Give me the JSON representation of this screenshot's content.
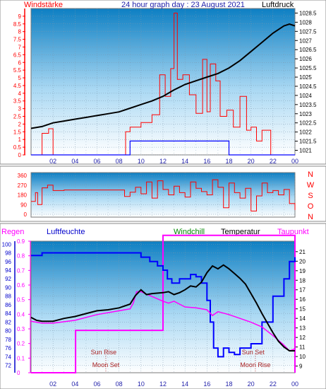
{
  "chart_data": [
    {
      "type": "line",
      "title": "24 hour graph day : 23 August 2021",
      "left_axis_label": "Windstärke",
      "right_axis_label": "Luftdruck",
      "x_tick_labels": [
        "02",
        "04",
        "06",
        "08",
        "10",
        "12",
        "14",
        "16",
        "18",
        "20",
        "22",
        "00"
      ],
      "x_ticks_hours": [
        2,
        4,
        6,
        8,
        10,
        12,
        14,
        16,
        18,
        20,
        22,
        24
      ],
      "left_ylim": [
        0,
        9.5
      ],
      "left_tick_labels": [
        "0",
        "0.5",
        "1",
        "1.5",
        "2",
        "2.5",
        "3",
        "3.5",
        "4",
        "4.5",
        "5",
        "5.5",
        "6",
        "6.5",
        "7",
        "7.5",
        "8",
        "8.5",
        "9"
      ],
      "right_ylim": [
        1020.75,
        1028.75
      ],
      "right_tick_labels": [
        "1021",
        "1021.5",
        "1022",
        "1022.5",
        "1023",
        "1023.5",
        "1024",
        "1024.5",
        "1025",
        "1025.5",
        "1026",
        "1026.5",
        "1027",
        "1027.5",
        "1028",
        "1028.5"
      ],
      "grid": true,
      "series": [
        {
          "name": "Luftdruck",
          "color": "#000000",
          "axis": "right",
          "x": [
            0,
            1,
            2,
            3,
            4,
            5,
            6,
            7,
            8,
            9,
            10,
            11,
            12,
            13,
            14,
            15,
            16,
            17,
            18,
            19,
            20,
            21,
            22,
            23,
            23.5,
            24
          ],
          "y": [
            1022.2,
            1022.3,
            1022.5,
            1022.6,
            1022.7,
            1022.8,
            1022.9,
            1023.0,
            1023.1,
            1023.3,
            1023.5,
            1023.7,
            1023.95,
            1024.3,
            1024.6,
            1024.8,
            1025.0,
            1025.2,
            1025.5,
            1025.9,
            1026.4,
            1026.9,
            1027.4,
            1027.8,
            1027.9,
            1027.8
          ]
        },
        {
          "name": "Windstärke (mean)",
          "color": "#0000ff",
          "axis": "left",
          "x": [
            0,
            9.0,
            9.0,
            18.0,
            18.0,
            24
          ],
          "y": [
            0,
            0,
            0.9,
            0.9,
            0,
            0
          ]
        },
        {
          "name": "Windstärke (gust)",
          "color": "#ff0000",
          "axis": "left",
          "x": [
            0,
            1.0,
            1.6,
            2.0,
            4.5,
            5.2,
            8.0,
            8.6,
            9.0,
            10.0,
            11.0,
            11.7,
            12.2,
            12.7,
            13.0,
            13.3,
            13.8,
            14.4,
            15.0,
            15.6,
            16.0,
            16.3,
            16.8,
            17.2,
            17.8,
            18.4,
            19.0,
            19.6,
            20.0,
            20.5,
            21.0,
            21.8,
            22.5,
            23.5,
            24
          ],
          "y": [
            0,
            1.4,
            1.7,
            0,
            0,
            0,
            0,
            1.5,
            1.8,
            2.1,
            2.6,
            5.2,
            3.8,
            5.6,
            9.2,
            4.9,
            5.2,
            3.9,
            2.7,
            6.2,
            2.8,
            5.9,
            4.8,
            2.5,
            2.9,
            1.8,
            3.8,
            1.6,
            1.8,
            0.9,
            1.6,
            0,
            0,
            0,
            0
          ]
        }
      ]
    },
    {
      "type": "scatter",
      "title": "",
      "y_tick_labels": [
        "0",
        "90",
        "180",
        "270",
        "360"
      ],
      "right_labels": [
        "N",
        "W",
        "S",
        "O",
        "N"
      ],
      "ylim": [
        0,
        360
      ],
      "grid": true,
      "series": [
        {
          "name": "Windrichtung",
          "color": "#ff0000",
          "x": [
            0,
            0.4,
            0.6,
            1.0,
            1.5,
            2.0,
            3.0,
            4.0,
            6.0,
            8.0,
            8.5,
            9.0,
            9.5,
            10.0,
            10.5,
            11.0,
            11.5,
            12.0,
            12.5,
            13.0,
            13.5,
            14.0,
            14.5,
            15.0,
            15.5,
            16.0,
            16.5,
            17.0,
            17.5,
            18.0,
            18.5,
            19.0,
            19.5,
            20.0,
            20.5,
            21.0,
            21.5,
            22.0,
            22.5,
            23.0,
            23.5,
            24.0
          ],
          "y": [
            120,
            200,
            90,
            245,
            270,
            220,
            225,
            225,
            225,
            225,
            165,
            205,
            250,
            190,
            300,
            150,
            310,
            230,
            180,
            260,
            200,
            160,
            300,
            240,
            210,
            180,
            320,
            250,
            60,
            290,
            200,
            150,
            240,
            30,
            170,
            290,
            200,
            220,
            180,
            230,
            100,
            40
          ]
        }
      ]
    },
    {
      "type": "line",
      "title": "",
      "header_labels": [
        "Regen",
        "Luftfeuchte",
        "Windchill",
        "Temperatur",
        "Taupunkt"
      ],
      "x_tick_labels": [
        "02",
        "04",
        "06",
        "08",
        "10",
        "12",
        "14",
        "16",
        "18",
        "20",
        "22",
        "00"
      ],
      "left_humidity_ticks": [
        "72",
        "74",
        "76",
        "78",
        "80",
        "82",
        "84",
        "86",
        "88",
        "90",
        "92",
        "94",
        "96",
        "98",
        "100"
      ],
      "humidity_ylim": [
        70.3,
        100.7
      ],
      "left_rain_ticks": [
        "0",
        "0.1",
        "0.2",
        "0.3",
        "0.4",
        "0.5",
        "0.6",
        "0.7",
        "0.8",
        "0.9"
      ],
      "rain_ylim": [
        0,
        0.9
      ],
      "right_temp_ticks": [
        "9",
        "10",
        "11",
        "12",
        "13",
        "14",
        "15",
        "16",
        "17",
        "18",
        "19",
        "20",
        "21"
      ],
      "temp_ylim": [
        8.3,
        22.1
      ],
      "annotations": [
        "Sun Rise",
        "Moon Set",
        "Sun Set",
        "Moon Rise"
      ],
      "annotation_hours": [
        6.6,
        6.8,
        20.2,
        20.4
      ],
      "grid": true,
      "series": [
        {
          "name": "Luftfeuchte",
          "color": "#0000ff",
          "axis": "humidity",
          "x": [
            0,
            1,
            2,
            4,
            6,
            8,
            9.5,
            10.0,
            10.8,
            11.5,
            12.0,
            12.4,
            12.8,
            13.5,
            14.0,
            14.5,
            15.0,
            15.5,
            16.0,
            16.3,
            16.6,
            17.0,
            17.5,
            18.0,
            18.5,
            19.0,
            19.5,
            20.0,
            20.5,
            21.0,
            22.0,
            23.0,
            23.5,
            24.0
          ],
          "y": [
            97.4,
            98.0,
            98.0,
            98.0,
            98.0,
            98.0,
            98.0,
            97.0,
            96.0,
            95.0,
            94.0,
            92.0,
            91.0,
            92.0,
            92.0,
            93.0,
            92.5,
            91.0,
            87.0,
            82.0,
            76.0,
            74.0,
            76.0,
            75.0,
            74.5,
            76.0,
            76.0,
            77.0,
            77.0,
            82.0,
            88.0,
            92.0,
            96.0,
            97.0
          ]
        },
        {
          "name": "Temperatur",
          "color": "#000000",
          "axis": "temp",
          "x": [
            0,
            0.5,
            1,
            2,
            3,
            4,
            5,
            6,
            7,
            8,
            9,
            9.5,
            10.0,
            10.5,
            11.0,
            12.0,
            12.5,
            13.0,
            13.5,
            14.0,
            14.5,
            15.0,
            15.5,
            16.0,
            16.5,
            17.0,
            17.5,
            18.0,
            18.5,
            19.0,
            19.5,
            20.0,
            20.5,
            21.0,
            21.5,
            22.0,
            22.5,
            23.0,
            23.5,
            24.0
          ],
          "y": [
            14.1,
            13.8,
            13.7,
            13.7,
            14.0,
            14.2,
            14.5,
            14.8,
            14.9,
            15.1,
            15.5,
            16.4,
            17.0,
            16.5,
            16.6,
            16.7,
            16.8,
            16.5,
            16.7,
            17.0,
            17.4,
            17.3,
            17.8,
            18.8,
            19.5,
            19.2,
            19.6,
            19.2,
            18.7,
            18.2,
            17.6,
            16.6,
            15.6,
            14.5,
            13.5,
            12.5,
            11.6,
            11.0,
            10.6,
            10.6
          ]
        },
        {
          "name": "Taupunkt",
          "color": "#ff00ff",
          "axis": "temp",
          "x": [
            0,
            1,
            2,
            4,
            6,
            8,
            9,
            9.3,
            9.6,
            10.0,
            11.0,
            12.0,
            12.5,
            13.0,
            13.5,
            14.0,
            15.0,
            16.0,
            16.5,
            17.0,
            18.0,
            19.0,
            20.0,
            21.0,
            22.0,
            23.0,
            23.5,
            24.0
          ],
          "y": [
            13.7,
            13.5,
            13.5,
            13.8,
            14.4,
            14.8,
            15.0,
            15.6,
            16.8,
            16.8,
            16.3,
            15.8,
            15.6,
            15.8,
            15.5,
            15.2,
            15.1,
            14.9,
            14.3,
            14.7,
            14.4,
            14.0,
            13.6,
            13.1,
            12.2,
            11.2,
            10.6,
            10.8
          ]
        },
        {
          "name": "Regen",
          "color": "#ff00ff",
          "axis": "rain",
          "x": [
            0,
            3.95,
            4.05,
            11.9,
            12.0,
            23.9,
            24.0
          ],
          "y": [
            0,
            0,
            0.29,
            0.29,
            0.94,
            0.94,
            0
          ]
        }
      ]
    }
  ]
}
